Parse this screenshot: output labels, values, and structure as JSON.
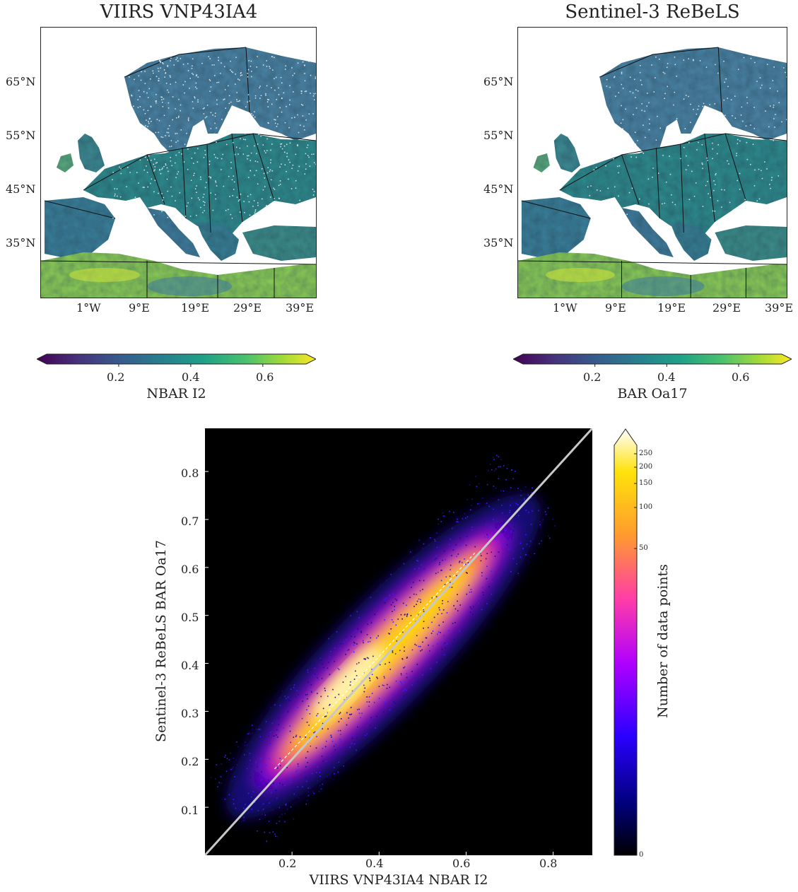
{
  "chart_data": [
    {
      "type": "heatmap",
      "title": "VIIRS VNP43IA4",
      "lat_ticks": [
        "65°N",
        "55°N",
        "45°N",
        "35°N"
      ],
      "lon_ticks": [
        "1°W",
        "9°E",
        "19°E",
        "29°E",
        "39°E"
      ],
      "colorbar": {
        "label": "NBAR I2",
        "ticks": [
          "0.2",
          "0.4",
          "0.6"
        ],
        "tick_values": [
          0.2,
          0.4,
          0.6
        ],
        "range": [
          0.0,
          0.72
        ],
        "colormap": "viridis",
        "extend": "both"
      }
    },
    {
      "type": "heatmap",
      "title": "Sentinel-3 ReBeLS",
      "lat_ticks": [
        "65°N",
        "55°N",
        "45°N",
        "35°N"
      ],
      "lon_ticks": [
        "1°W",
        "9°E",
        "19°E",
        "29°E",
        "39°E"
      ],
      "colorbar": {
        "label": "BAR Oa17",
        "ticks": [
          "0.2",
          "0.4",
          "0.6"
        ],
        "tick_values": [
          0.2,
          0.4,
          0.6
        ],
        "range": [
          0.0,
          0.72
        ],
        "colormap": "viridis",
        "extend": "both"
      }
    },
    {
      "type": "heatmap",
      "subtype": "2d-density-scatter",
      "xlabel": "VIIRS VNP43IA4 NBAR I2",
      "ylabel": "Sentinel-3 ReBeLS BAR Oa17",
      "xlim": [
        0.0,
        0.89
      ],
      "ylim": [
        0.0,
        0.89
      ],
      "x_ticks": [
        "0.2",
        "0.4",
        "0.6",
        "0.8"
      ],
      "x_tick_values": [
        0.2,
        0.4,
        0.6,
        0.8
      ],
      "y_ticks": [
        "0.1",
        "0.2",
        "0.3",
        "0.4",
        "0.5",
        "0.6",
        "0.7",
        "0.8"
      ],
      "y_tick_values": [
        0.1,
        0.2,
        0.3,
        0.4,
        0.5,
        0.6,
        0.7,
        0.8
      ],
      "density_core": {
        "x_range": [
          0.15,
          0.67
        ],
        "y_range": [
          0.17,
          0.66
        ],
        "peak_x": 0.33,
        "peak_y": 0.36
      },
      "one_to_one_line": {
        "x": [
          0.0,
          0.89
        ],
        "y": [
          0.0,
          0.89
        ],
        "color": "#c8c8c8"
      },
      "fit_line": {
        "x": [
          0.16,
          0.62
        ],
        "y": [
          0.18,
          0.63
        ],
        "style": "dashed"
      },
      "colorbar": {
        "label": "Number of data points",
        "ticks": [
          "250",
          "200",
          "150",
          "100",
          "50",
          "0"
        ],
        "tick_values": [
          250,
          200,
          150,
          100,
          50,
          0
        ],
        "colormap": "gnuplot2",
        "extend": "max"
      }
    }
  ]
}
